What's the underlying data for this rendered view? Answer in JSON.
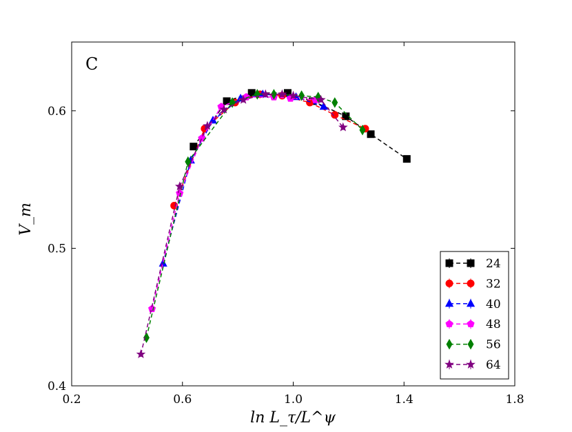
{
  "chart_data": {
    "type": "scatter",
    "panel_label": "C",
    "xlabel": "ln L_τ/L^ψ",
    "ylabel": "V_m",
    "xlim": [
      0.2,
      1.8
    ],
    "ylim": [
      0.4,
      0.65
    ],
    "xticks": [
      0.2,
      0.6,
      1.0,
      1.4,
      1.8
    ],
    "xtick_labels": [
      "0.2",
      "0.6",
      "1.0",
      "1.4",
      "1.8"
    ],
    "yticks": [
      0.4,
      0.5,
      0.6
    ],
    "ytick_labels": [
      "0.4",
      "0.5",
      "0.6"
    ],
    "legend_position": "bottom-right",
    "series": [
      {
        "name": "24",
        "color": "#000000",
        "marker": "square",
        "x": [
          0.64,
          0.76,
          0.85,
          0.98,
          1.07,
          1.19,
          1.28,
          1.41
        ],
        "y": [
          0.574,
          0.607,
          0.613,
          0.613,
          0.607,
          0.596,
          0.583,
          0.565
        ]
      },
      {
        "name": "32",
        "color": "#ff0000",
        "marker": "circle",
        "x": [
          0.57,
          0.68,
          0.79,
          0.88,
          0.96,
          1.06,
          1.15,
          1.26
        ],
        "y": [
          0.531,
          0.587,
          0.606,
          0.612,
          0.611,
          0.606,
          0.597,
          0.587
        ]
      },
      {
        "name": "40",
        "color": "#0000ff",
        "marker": "triangle",
        "x": [
          0.53,
          0.63,
          0.71,
          0.81,
          0.89,
          1.01,
          1.11
        ],
        "y": [
          0.489,
          0.564,
          0.593,
          0.609,
          0.612,
          0.61,
          0.603
        ]
      },
      {
        "name": "48",
        "color": "#ff00ff",
        "marker": "pentagon",
        "x": [
          0.49,
          0.59,
          0.67,
          0.74,
          0.83,
          0.93,
          0.99,
          1.08
        ],
        "y": [
          0.456,
          0.54,
          0.58,
          0.603,
          0.61,
          0.61,
          0.609,
          0.608
        ]
      },
      {
        "name": "56",
        "color": "#008000",
        "marker": "diamond",
        "x": [
          0.47,
          0.62,
          0.78,
          0.87,
          0.93,
          1.03,
          1.09,
          1.15,
          1.25
        ],
        "y": [
          0.435,
          0.563,
          0.606,
          0.612,
          0.612,
          0.611,
          0.61,
          0.606,
          0.586
        ]
      },
      {
        "name": "64",
        "color": "#800080",
        "marker": "star",
        "x": [
          0.45,
          0.59,
          0.69,
          0.75,
          0.82,
          0.9,
          0.96,
          1.0,
          1.1,
          1.18
        ],
        "y": [
          0.423,
          0.545,
          0.589,
          0.601,
          0.608,
          0.612,
          0.612,
          0.611,
          0.608,
          0.588
        ]
      }
    ]
  }
}
